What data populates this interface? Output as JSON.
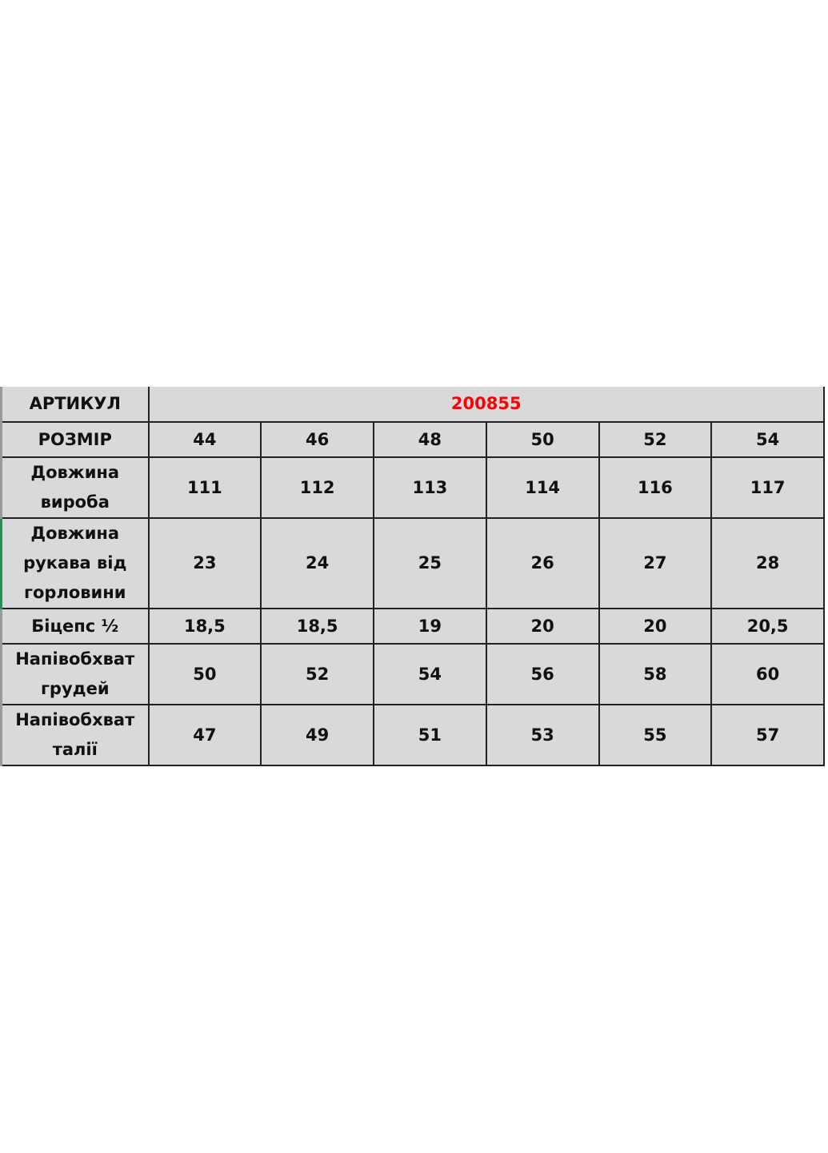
{
  "table": {
    "article_label": "АРТИКУЛ",
    "article_value": "200855",
    "article_color": "#ff0000",
    "size_label": "РОЗМІР",
    "sizes": [
      "44",
      "46",
      "48",
      "50",
      "52",
      "54"
    ],
    "rows": [
      {
        "label_lines": [
          "Довжина",
          "виробa"
        ],
        "values": [
          "111",
          "112",
          "113",
          "114",
          "116",
          "117"
        ]
      },
      {
        "label_lines": [
          "Довжина",
          "рукава від",
          "горловини"
        ],
        "values": [
          "23",
          "24",
          "25",
          "26",
          "27",
          "28"
        ]
      },
      {
        "label_lines": [
          "Біцепс ½"
        ],
        "values": [
          "18,5",
          "18,5",
          "19",
          "20",
          "20",
          "20,5"
        ]
      },
      {
        "label_lines": [
          "Напівобхват",
          "грудей"
        ],
        "values": [
          "50",
          "52",
          "54",
          "56",
          "58",
          "60"
        ]
      },
      {
        "label_lines": [
          "Напівобхват",
          "талії"
        ],
        "values": [
          "47",
          "49",
          "51",
          "53",
          "55",
          "57"
        ]
      }
    ]
  }
}
